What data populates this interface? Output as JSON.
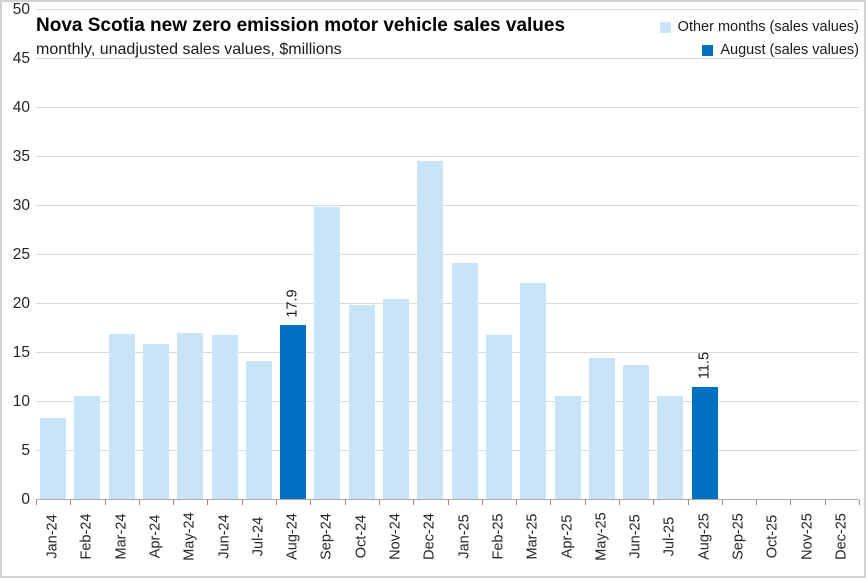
{
  "header": {
    "title": "Nova Scotia new zero emission motor vehicle sales values",
    "subtitle": "monthly, unadjusted sales values, $millions"
  },
  "chart_data": {
    "type": "bar",
    "title": "Nova Scotia new zero emission motor vehicle sales values",
    "subtitle": "monthly, unadjusted sales values, $millions",
    "xlabel": "",
    "ylabel": "",
    "ylim": [
      0,
      50
    ],
    "yticks": [
      0,
      5,
      10,
      15,
      20,
      25,
      30,
      35,
      40,
      45,
      50
    ],
    "grid": "horizontal",
    "legend_position": "top-right",
    "categories": [
      "Jan-24",
      "Feb-24",
      "Mar-24",
      "Apr-24",
      "May-24",
      "Jun-24",
      "Jul-24",
      "Aug-24",
      "Sep-24",
      "Oct-24",
      "Nov-24",
      "Dec-24",
      "Jan-25",
      "Feb-25",
      "Mar-25",
      "Apr-25",
      "May-25",
      "Jun-25",
      "Jul-25",
      "Aug-25",
      "Sep-25",
      "Oct-25",
      "Nov-25",
      "Dec-25"
    ],
    "values": [
      8.4,
      10.6,
      16.9,
      15.9,
      17.0,
      16.8,
      14.2,
      17.9,
      29.9,
      19.9,
      20.5,
      34.6,
      24.2,
      16.8,
      22.1,
      10.6,
      14.5,
      13.8,
      10.6,
      11.5,
      null,
      null,
      null,
      null
    ],
    "series": [
      {
        "name": "Other months (sales values)",
        "color": "#C9E4F9",
        "role": "other-months"
      },
      {
        "name": "August (sales values)",
        "color": "#0070C0",
        "role": "august"
      }
    ],
    "august_indices": [
      7,
      19
    ],
    "data_labels": [
      {
        "index": 7,
        "category": "Aug-24",
        "text": "17.9"
      },
      {
        "index": 19,
        "category": "Aug-25",
        "text": "11.5"
      }
    ]
  },
  "colors": {
    "background": "#FFFFFF",
    "border": "#D2D2D2",
    "gridline": "#D9D9D9",
    "axis_line": "#ABABAB",
    "tick": "#8C8C8C",
    "text": "#262626",
    "title": "#000000"
  }
}
